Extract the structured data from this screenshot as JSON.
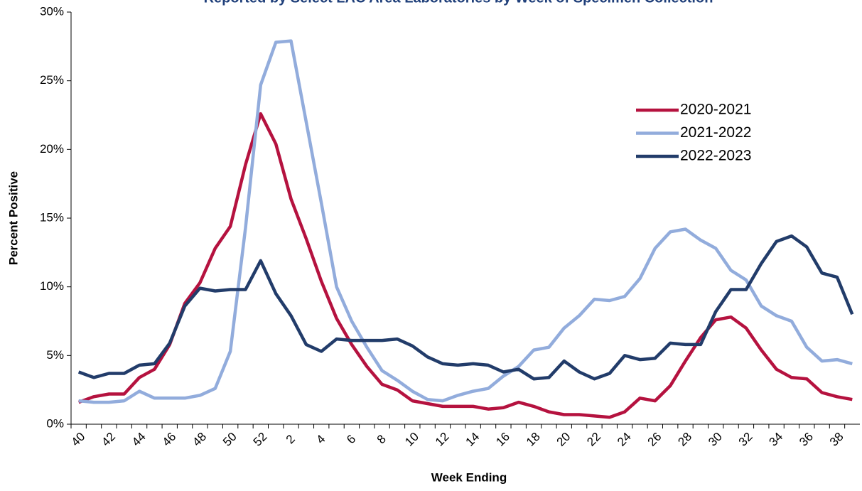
{
  "chart_data": {
    "type": "line",
    "title": "Reported by Select LAC Area Laboratories by Week of Specimen Collection",
    "x_label": "Week Ending",
    "y_label": "Percent Positive",
    "categories": [
      "40",
      null,
      "42",
      null,
      "44",
      null,
      "46",
      null,
      "48",
      null,
      "50",
      null,
      "52",
      null,
      "2",
      null,
      "4",
      null,
      "6",
      null,
      "8",
      null,
      "10",
      null,
      "12",
      null,
      "14",
      null,
      "16",
      null,
      "18",
      null,
      "20",
      null,
      "22",
      null,
      "24",
      null,
      "26",
      null,
      "28",
      null,
      "30",
      null,
      "32",
      null,
      "34",
      null,
      "36",
      null,
      "38",
      null
    ],
    "ylim": [
      0,
      30
    ],
    "yticks": [
      {
        "value": 0,
        "label": "0%"
      },
      {
        "value": 5,
        "label": "5%"
      },
      {
        "value": 10,
        "label": "10%"
      },
      {
        "value": 15,
        "label": "15%"
      },
      {
        "value": 20,
        "label": "20%"
      },
      {
        "value": 25,
        "label": "25%"
      },
      {
        "value": 30,
        "label": "30%"
      }
    ],
    "legend": "upper right",
    "series": [
      {
        "name": "2020-2021",
        "color": "#b5123f",
        "values": [
          1.6,
          2.0,
          2.2,
          2.2,
          3.4,
          4.0,
          5.8,
          8.8,
          10.3,
          12.8,
          14.4,
          18.9,
          22.6,
          20.4,
          16.4,
          13.5,
          10.4,
          7.7,
          5.8,
          4.2,
          2.9,
          2.5,
          1.7,
          1.5,
          1.3,
          1.3,
          1.3,
          1.1,
          1.2,
          1.6,
          1.3,
          0.9,
          0.7,
          0.7,
          0.6,
          0.5,
          0.9,
          1.9,
          1.7,
          2.8,
          4.6,
          6.3,
          7.6,
          7.8,
          7.0,
          5.4,
          4.0,
          3.4,
          3.3,
          2.3,
          2.0,
          1.8
        ]
      },
      {
        "name": "2021-2022",
        "color": "#92acdc",
        "values": [
          1.7,
          1.6,
          1.6,
          1.7,
          2.4,
          1.9,
          1.9,
          1.9,
          2.1,
          2.6,
          5.3,
          14.3,
          24.7,
          27.8,
          27.9,
          22.0,
          16.1,
          10.0,
          7.5,
          5.6,
          3.9,
          3.2,
          2.4,
          1.8,
          1.7,
          2.1,
          2.4,
          2.6,
          3.5,
          4.2,
          5.4,
          5.6,
          7.0,
          7.9,
          9.1,
          9.0,
          9.3,
          10.6,
          12.8,
          14.0,
          14.2,
          13.4,
          12.8,
          11.2,
          10.5,
          8.6,
          7.9,
          7.5,
          5.6,
          4.6,
          4.7,
          4.4
        ]
      },
      {
        "name": "2022-2023",
        "color": "#223c6a",
        "values": [
          3.8,
          3.4,
          3.7,
          3.7,
          4.3,
          4.4,
          5.9,
          8.6,
          9.9,
          9.7,
          9.8,
          9.8,
          11.9,
          9.5,
          7.9,
          5.8,
          5.3,
          6.2,
          6.1,
          6.1,
          6.1,
          6.2,
          5.7,
          4.9,
          4.4,
          4.3,
          4.4,
          4.3,
          3.8,
          4.0,
          3.3,
          3.4,
          4.6,
          3.8,
          3.3,
          3.7,
          5.0,
          4.7,
          4.8,
          5.9,
          5.8,
          5.8,
          8.2,
          9.8,
          9.8,
          11.7,
          13.3,
          13.7,
          12.9,
          11.0,
          10.7,
          8.0
        ]
      }
    ]
  }
}
